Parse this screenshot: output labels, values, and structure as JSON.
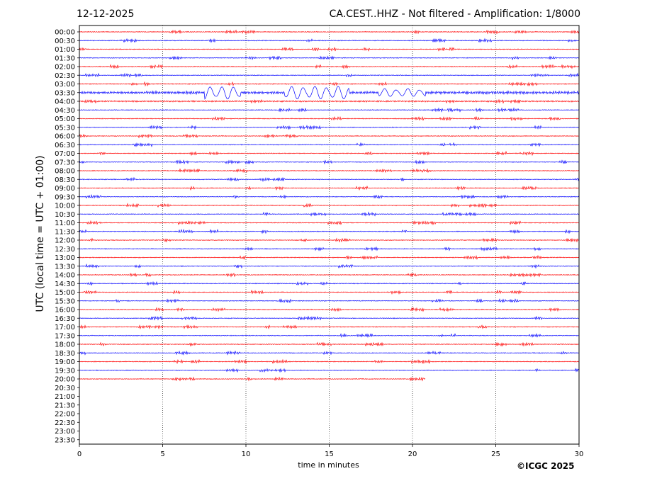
{
  "header": {
    "date": "12-12-2025",
    "title": "CA.CEST..HHZ - Not filtered - Amplification: 1/8000"
  },
  "footer": {
    "copyright": "©ICGC 2025"
  },
  "colors": {
    "trace_a": "#ff0000",
    "trace_b": "#0000ff",
    "grid": "#000000",
    "frame": "#000000",
    "background": "#ffffff"
  },
  "chart_data": {
    "type": "line",
    "title": "CA.CEST..HHZ - Not filtered - Amplification: 1/8000",
    "xlabel": "time in minutes",
    "ylabel": "UTC (local time = UTC + 01:00)",
    "xlim": [
      0,
      30
    ],
    "xticks": [
      "0",
      "5",
      "10",
      "15",
      "20",
      "25",
      "30"
    ],
    "xtick_values": [
      0,
      5,
      10,
      15,
      20,
      25,
      30
    ],
    "grid": "vertical dotted lines at 5-minute ticks",
    "rows": [
      "00:00",
      "00:30",
      "01:00",
      "01:30",
      "02:00",
      "02:30",
      "03:00",
      "03:30",
      "04:00",
      "04:30",
      "05:00",
      "05:30",
      "06:00",
      "06:30",
      "07:00",
      "07:30",
      "08:00",
      "08:30",
      "09:00",
      "09:30",
      "10:00",
      "10:30",
      "11:00",
      "11:30",
      "12:00",
      "12:30",
      "13:00",
      "13:30",
      "14:00",
      "14:30",
      "15:00",
      "15:30",
      "16:00",
      "16:30",
      "17:00",
      "17:30",
      "18:00",
      "18:30",
      "19:00",
      "19:30",
      "20:00",
      "20:30",
      "21:00",
      "21:30",
      "22:00",
      "22:30",
      "23:00",
      "23:30"
    ],
    "recorded_rows": 41,
    "last_row_end_minute": 20.8,
    "events": [
      {
        "row": "02:30",
        "start": 27.3,
        "end": 28.2,
        "level": 0.8
      },
      {
        "row": "03:00",
        "start": 0,
        "end": 30,
        "level": 0.4
      },
      {
        "row": "03:30",
        "start": 0,
        "end": 30,
        "level": 1.0
      },
      {
        "row": "03:30",
        "start": 7.5,
        "end": 9.7,
        "level": 4.0
      },
      {
        "row": "03:30",
        "start": 12.3,
        "end": 16.2,
        "level": 4.0
      },
      {
        "row": "03:30",
        "start": 18.0,
        "end": 20.8,
        "level": 2.5
      },
      {
        "row": "03:30",
        "start": 21.0,
        "end": 30,
        "level": 1.2
      },
      {
        "row": "04:00",
        "start": 0,
        "end": 30,
        "level": 0.6
      },
      {
        "row": "20:00",
        "start": 19.8,
        "end": 20.2,
        "level": 1.5
      }
    ]
  }
}
